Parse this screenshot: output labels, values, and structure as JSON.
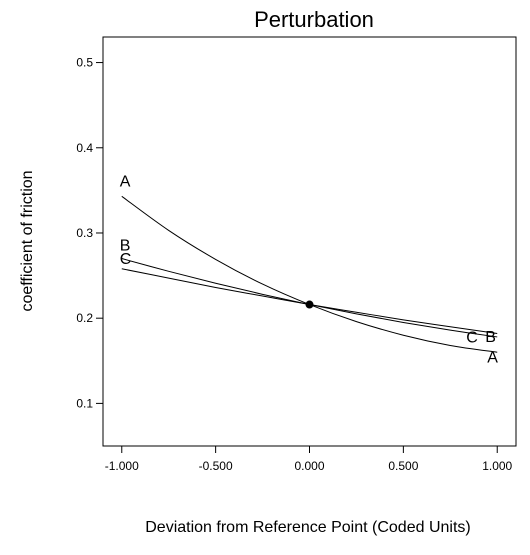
{
  "chart_data": {
    "type": "line",
    "title": "Perturbation",
    "xlabel": "Deviation from Reference Point (Coded Units)",
    "ylabel": "coefficient of friction",
    "xlim": [
      -1.1,
      1.1
    ],
    "ylim": [
      0.05,
      0.53
    ],
    "x_ticks": [
      -1.0,
      -0.5,
      0.0,
      0.5,
      1.0
    ],
    "x_tick_labels": [
      "-1.000",
      "-0.500",
      "0.000",
      "0.500",
      "1.000"
    ],
    "y_ticks": [
      0.1,
      0.2,
      0.3,
      0.4,
      0.5
    ],
    "y_tick_labels": [
      "0.1",
      "0.2",
      "0.3",
      "0.4",
      "0.5"
    ],
    "grid": false,
    "reference_point": {
      "x": 0.0,
      "y": 0.216
    },
    "series": [
      {
        "name": "A",
        "x": [
          -1.0,
          -0.75,
          -0.5,
          -0.25,
          0.0,
          0.25,
          0.5,
          0.75,
          1.0
        ],
        "values": [
          0.343,
          0.303,
          0.269,
          0.24,
          0.216,
          0.196,
          0.18,
          0.168,
          0.16
        ]
      },
      {
        "name": "B",
        "x": [
          -1.0,
          -0.75,
          -0.5,
          -0.25,
          0.0,
          0.25,
          0.5,
          0.75,
          1.0
        ],
        "values": [
          0.27,
          0.255,
          0.241,
          0.228,
          0.216,
          0.205,
          0.195,
          0.186,
          0.178
        ]
      },
      {
        "name": "C",
        "x": [
          -1.0,
          -0.75,
          -0.5,
          -0.25,
          0.0,
          0.25,
          0.5,
          0.75,
          1.0
        ],
        "values": [
          0.258,
          0.247,
          0.236,
          0.226,
          0.216,
          0.207,
          0.198,
          0.19,
          0.182
        ]
      }
    ]
  }
}
